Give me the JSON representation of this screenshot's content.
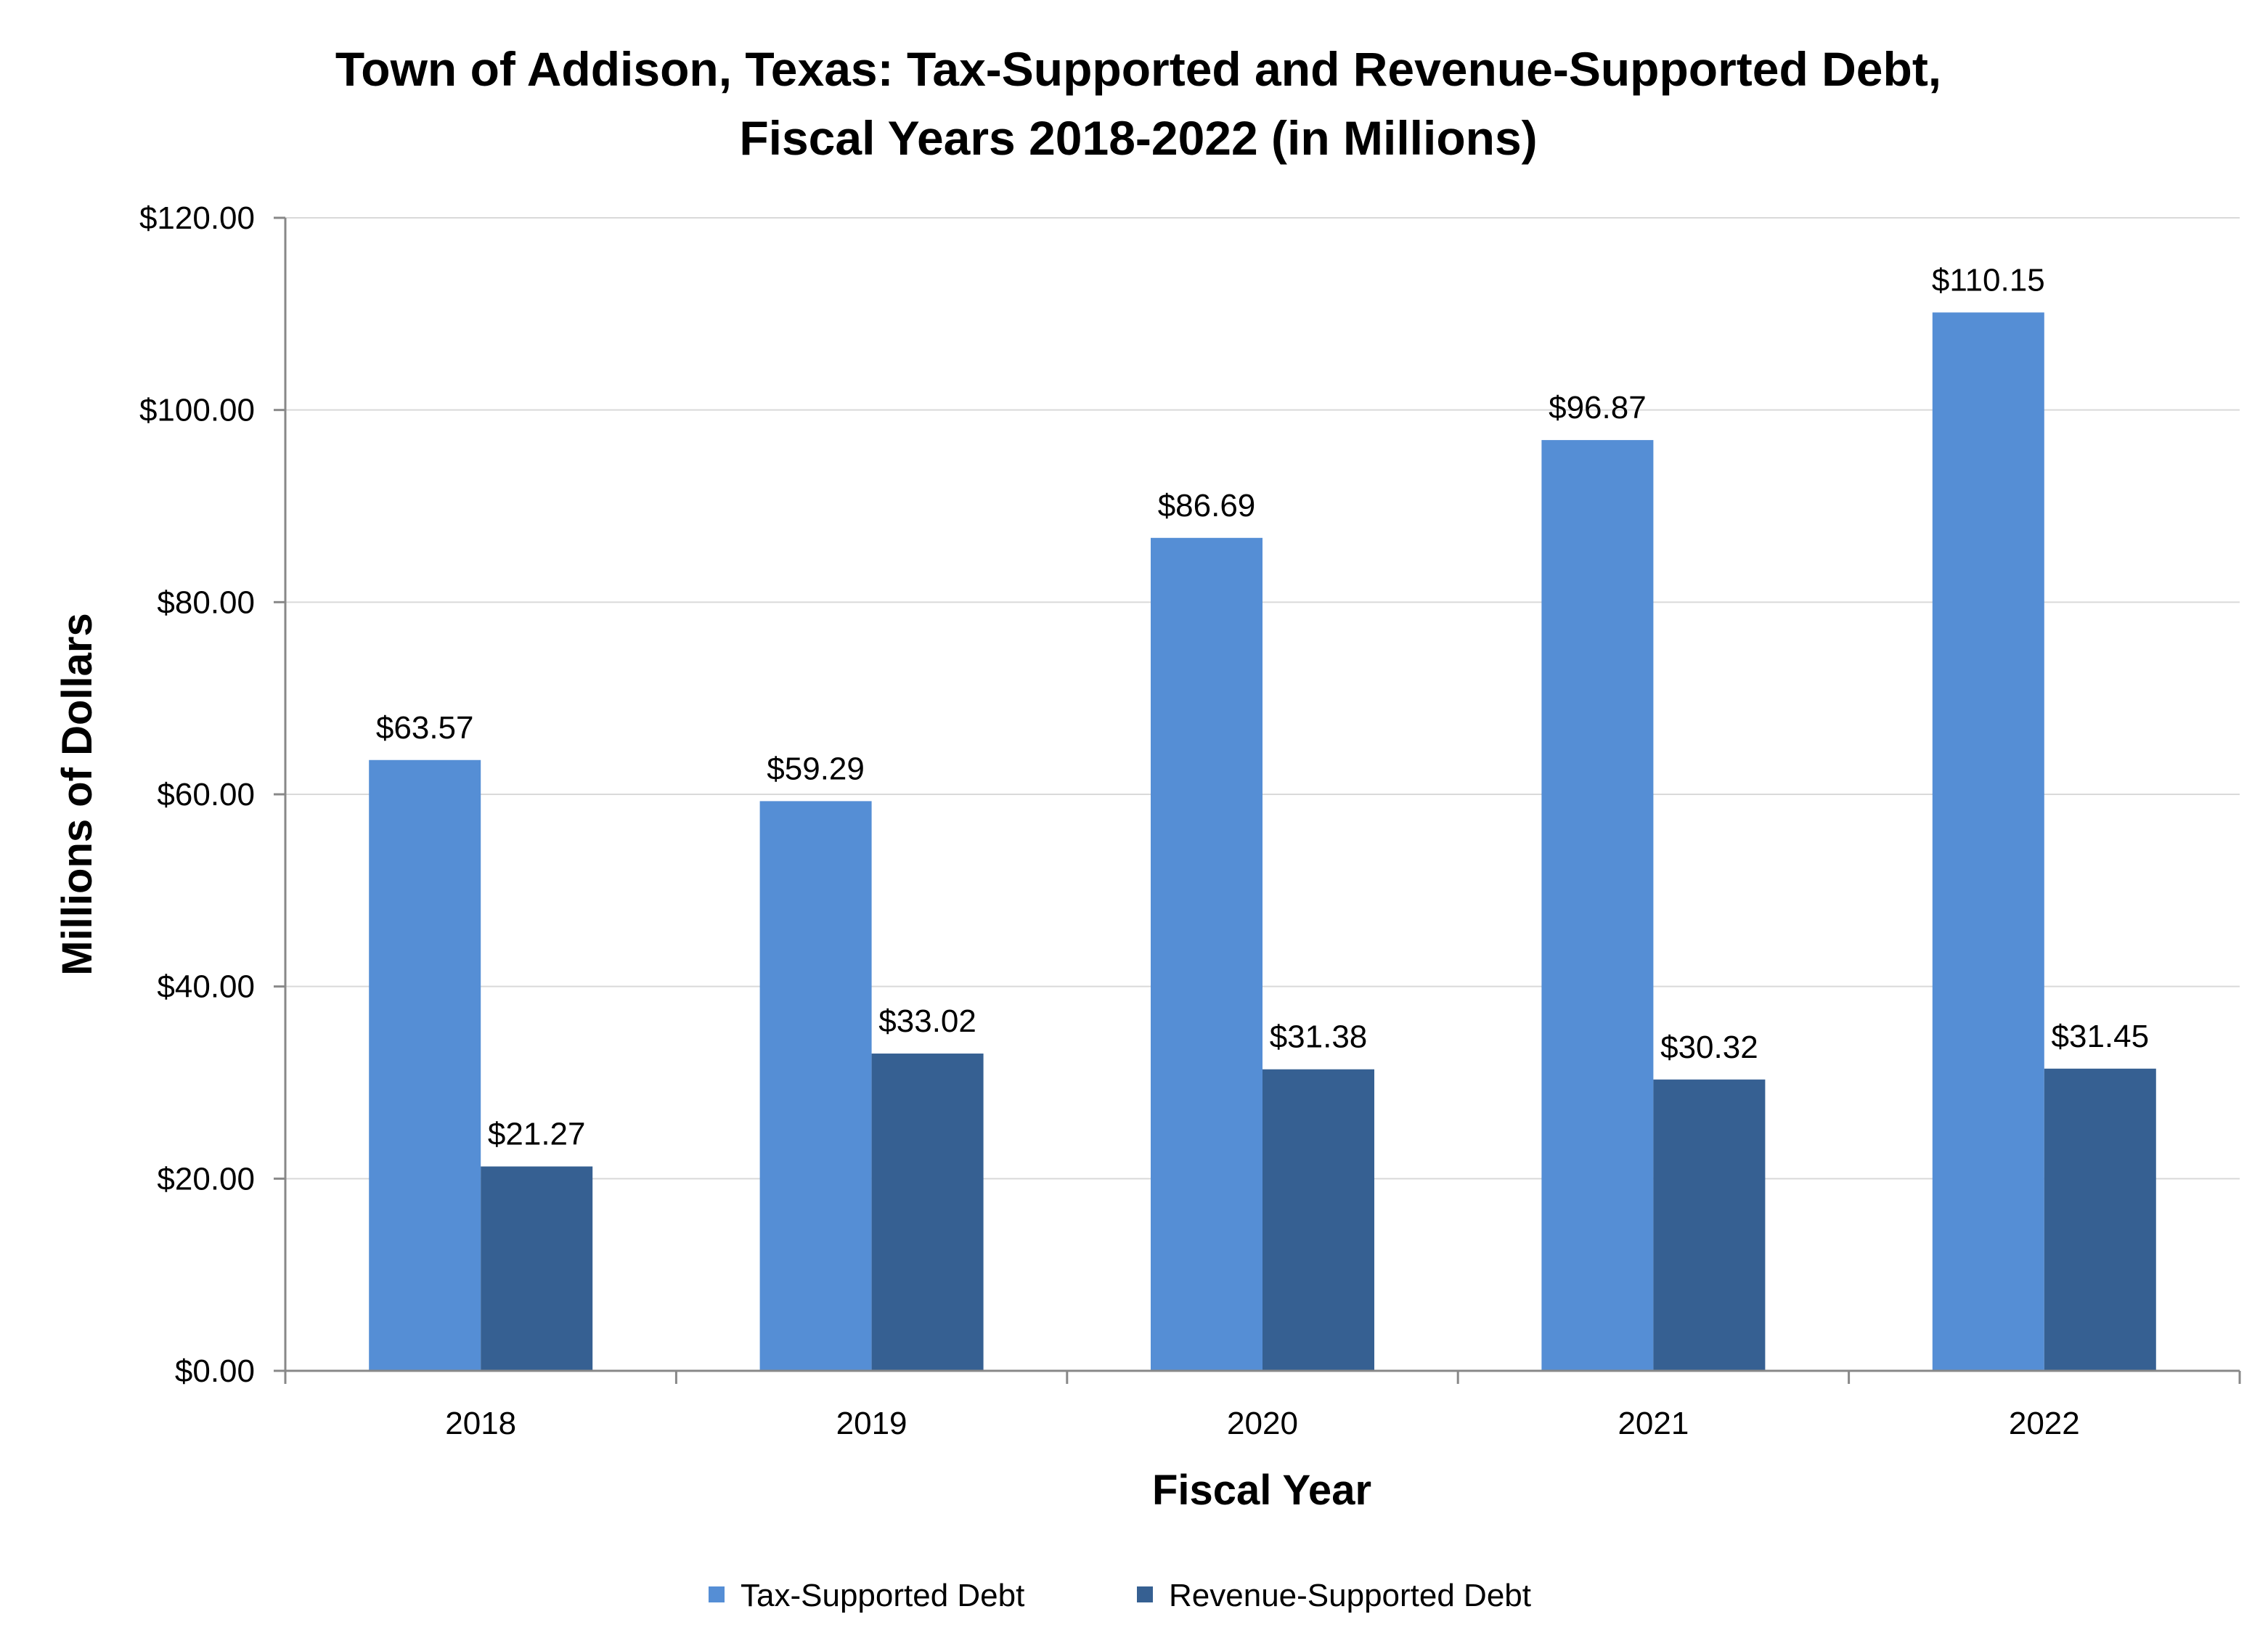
{
  "chart_data": {
    "type": "bar",
    "title_lines": [
      "Town of Addison, Texas: Tax-Supported and Revenue-Supported Debt,",
      "Fiscal Years 2018-2022 (in Millions)"
    ],
    "xlabel": "Fiscal Year",
    "ylabel": "Millions of Dollars",
    "categories": [
      "2018",
      "2019",
      "2020",
      "2021",
      "2022"
    ],
    "ylim": [
      0,
      120
    ],
    "yticks": [
      0,
      20,
      40,
      60,
      80,
      100,
      120
    ],
    "ytick_labels": [
      "$0.00",
      "$20.00",
      "$40.00",
      "$60.00",
      "$80.00",
      "$100.00",
      "$120.00"
    ],
    "grid": true,
    "legend_position": "bottom",
    "series": [
      {
        "name": "Tax-Supported Debt",
        "color": "#558ED5",
        "values": [
          63.57,
          59.29,
          86.69,
          96.87,
          110.15
        ],
        "labels": [
          "$63.57",
          "$59.29",
          "$86.69",
          "$96.87",
          "$110.15"
        ]
      },
      {
        "name": "Revenue-Supported Debt",
        "color": "#366092",
        "values": [
          21.27,
          33.02,
          31.38,
          30.32,
          31.45
        ],
        "labels": [
          "$21.27",
          "$33.02",
          "$31.38",
          "$30.32",
          "$31.45"
        ]
      }
    ]
  }
}
